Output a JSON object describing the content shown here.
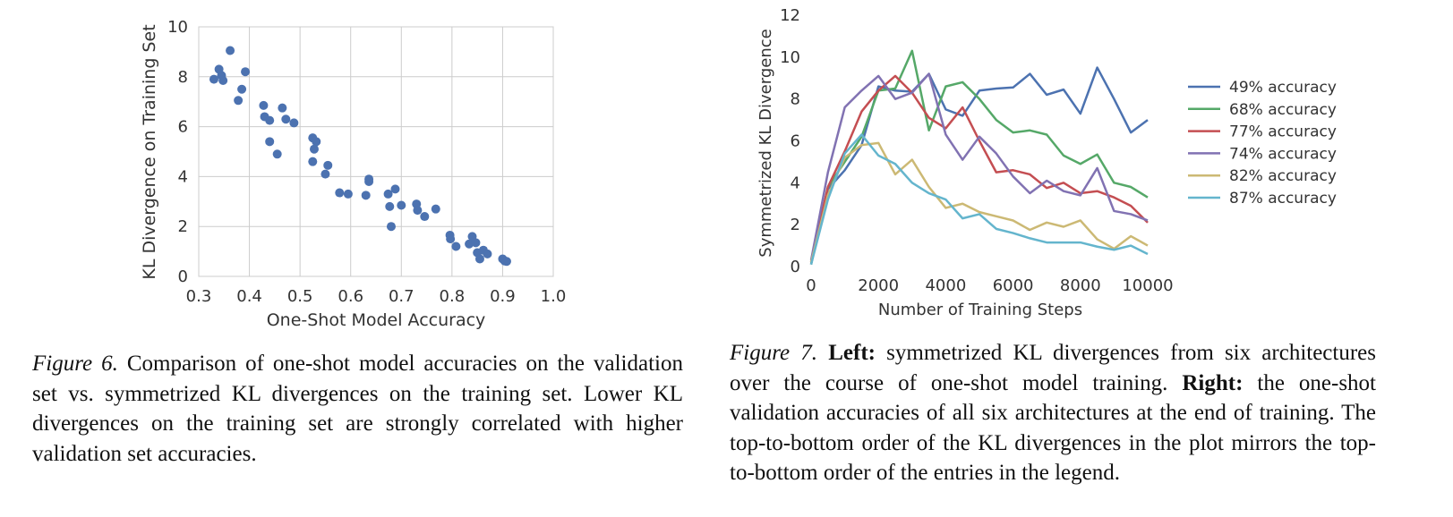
{
  "figure6": {
    "chart_data": {
      "type": "scatter",
      "xlabel": "One-Shot Model Accuracy",
      "ylabel": "KL Divergence on Training Set",
      "xlim": [
        0.3,
        1.0
      ],
      "ylim": [
        0,
        10
      ],
      "x_ticks": [
        "0.3",
        "0.4",
        "0.5",
        "0.6",
        "0.7",
        "0.8",
        "0.9",
        "1.0"
      ],
      "y_ticks": [
        "0",
        "2",
        "4",
        "6",
        "8",
        "10"
      ],
      "grid": true,
      "color": "#4c72b0",
      "points": [
        [
          0.33,
          7.9
        ],
        [
          0.34,
          8.3
        ],
        [
          0.345,
          8.05
        ],
        [
          0.348,
          7.85
        ],
        [
          0.362,
          9.05
        ],
        [
          0.378,
          7.05
        ],
        [
          0.385,
          7.5
        ],
        [
          0.392,
          8.2
        ],
        [
          0.428,
          6.85
        ],
        [
          0.43,
          6.4
        ],
        [
          0.44,
          6.25
        ],
        [
          0.44,
          5.4
        ],
        [
          0.455,
          4.9
        ],
        [
          0.465,
          6.75
        ],
        [
          0.472,
          6.3
        ],
        [
          0.488,
          6.15
        ],
        [
          0.525,
          5.55
        ],
        [
          0.525,
          4.6
        ],
        [
          0.528,
          5.1
        ],
        [
          0.532,
          5.4
        ],
        [
          0.55,
          4.1
        ],
        [
          0.555,
          4.45
        ],
        [
          0.578,
          3.35
        ],
        [
          0.595,
          3.3
        ],
        [
          0.63,
          3.25
        ],
        [
          0.636,
          3.9
        ],
        [
          0.636,
          3.8
        ],
        [
          0.674,
          3.3
        ],
        [
          0.677,
          2.8
        ],
        [
          0.68,
          2.0
        ],
        [
          0.688,
          3.5
        ],
        [
          0.7,
          2.85
        ],
        [
          0.73,
          2.9
        ],
        [
          0.732,
          2.65
        ],
        [
          0.746,
          2.4
        ],
        [
          0.768,
          2.7
        ],
        [
          0.796,
          1.65
        ],
        [
          0.797,
          1.5
        ],
        [
          0.808,
          1.2
        ],
        [
          0.834,
          1.3
        ],
        [
          0.84,
          1.6
        ],
        [
          0.847,
          1.35
        ],
        [
          0.85,
          0.95
        ],
        [
          0.855,
          0.7
        ],
        [
          0.862,
          1.05
        ],
        [
          0.87,
          0.9
        ],
        [
          0.9,
          0.7
        ],
        [
          0.904,
          0.62
        ],
        [
          0.908,
          0.6
        ]
      ]
    },
    "caption": {
      "label": "Figure 6.",
      "text": "Comparison of one-shot model accuracies on the validation set vs. symmetrized KL divergences on the training set. Lower KL divergences on the training set are strongly correlated with higher validation set accuracies."
    }
  },
  "figure7": {
    "chart_data": {
      "type": "line",
      "xlabel": "Number of Training Steps",
      "ylabel": "Symmetrized KL Divergence",
      "xlim": [
        0,
        10000
      ],
      "ylim": [
        0,
        12
      ],
      "x_ticks": [
        "0",
        "2000",
        "4000",
        "6000",
        "8000",
        "10000"
      ],
      "y_ticks": [
        "0",
        "2",
        "4",
        "6",
        "8",
        "10",
        "12"
      ],
      "grid": false,
      "legend_position": "right",
      "x": [
        0,
        500,
        1000,
        1500,
        2000,
        2500,
        3000,
        3500,
        4000,
        4500,
        5000,
        5500,
        6000,
        6500,
        7000,
        7500,
        8000,
        8500,
        9000,
        9500,
        10000
      ],
      "series": [
        {
          "name": "49% accuracy",
          "color": "#4c72b0",
          "values": [
            0.1,
            3.7,
            4.6,
            5.8,
            8.6,
            8.4,
            8.35,
            9.2,
            7.5,
            7.2,
            8.4,
            8.5,
            8.55,
            9.2,
            8.2,
            8.45,
            7.3,
            9.5,
            8.0,
            6.4,
            7.0
          ]
        },
        {
          "name": "68% accuracy",
          "color": "#55a868",
          "values": [
            0.1,
            3.8,
            5.0,
            6.2,
            8.4,
            8.5,
            10.3,
            6.5,
            8.6,
            8.8,
            8.0,
            7.0,
            6.4,
            6.5,
            6.3,
            5.3,
            4.9,
            5.35,
            4.0,
            3.8,
            3.3
          ]
        },
        {
          "name": "77% accuracy",
          "color": "#c44e52",
          "values": [
            0.2,
            3.8,
            5.5,
            7.4,
            8.4,
            9.1,
            8.3,
            7.1,
            6.6,
            7.6,
            6.0,
            4.5,
            4.6,
            4.4,
            3.75,
            4.0,
            3.5,
            3.6,
            3.3,
            2.9,
            2.1
          ]
        },
        {
          "name": "74% accuracy",
          "color": "#8172b2",
          "values": [
            0.3,
            4.5,
            7.6,
            8.4,
            9.1,
            8.0,
            8.3,
            9.2,
            6.3,
            5.1,
            6.2,
            5.4,
            4.3,
            3.5,
            4.1,
            3.6,
            3.4,
            4.7,
            2.65,
            2.5,
            2.2
          ]
        },
        {
          "name": "82% accuracy",
          "color": "#ccb974",
          "values": [
            0.2,
            3.4,
            5.2,
            5.8,
            5.9,
            4.4,
            5.1,
            3.8,
            2.8,
            3.0,
            2.6,
            2.4,
            2.2,
            1.75,
            2.1,
            1.9,
            2.2,
            1.3,
            0.85,
            1.45,
            1.0
          ]
        },
        {
          "name": "87% accuracy",
          "color": "#64b5cd",
          "values": [
            0.1,
            3.2,
            5.4,
            6.3,
            5.3,
            4.9,
            4.0,
            3.5,
            3.2,
            2.3,
            2.5,
            1.8,
            1.6,
            1.35,
            1.15,
            1.15,
            1.15,
            0.95,
            0.8,
            1.0,
            0.6
          ]
        }
      ]
    },
    "caption": {
      "label": "Figure 7.",
      "left_bold": "Left:",
      "left_text": "symmetrized KL divergences from six architectures over the course of one-shot model training.",
      "right_bold": "Right:",
      "right_text": "the one-shot validation accuracies of all six architectures at the end of training. The top-to-bottom order of the KL divergences in the plot mirrors the top-to-bottom order of the entries in the legend."
    }
  }
}
